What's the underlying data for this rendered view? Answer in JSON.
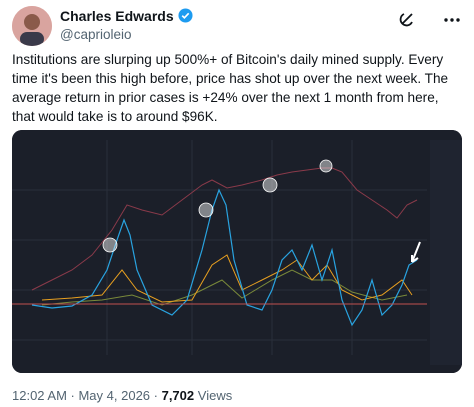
{
  "author": {
    "name": "Charles Edwards",
    "handle": "@caprioleio"
  },
  "tweet": {
    "text": "Institutions are slurping up 500%+ of Bitcoin's daily mined supply. Every time it's been this high before, price has shot up over the next week. The average return in prior cases is +24% over the next 1 month from here, that would take is to around $96K."
  },
  "footer": {
    "timestamp": "12:02 AM · May 4, 2026 ·",
    "views": "7,702",
    "views_label": "Views"
  }
}
